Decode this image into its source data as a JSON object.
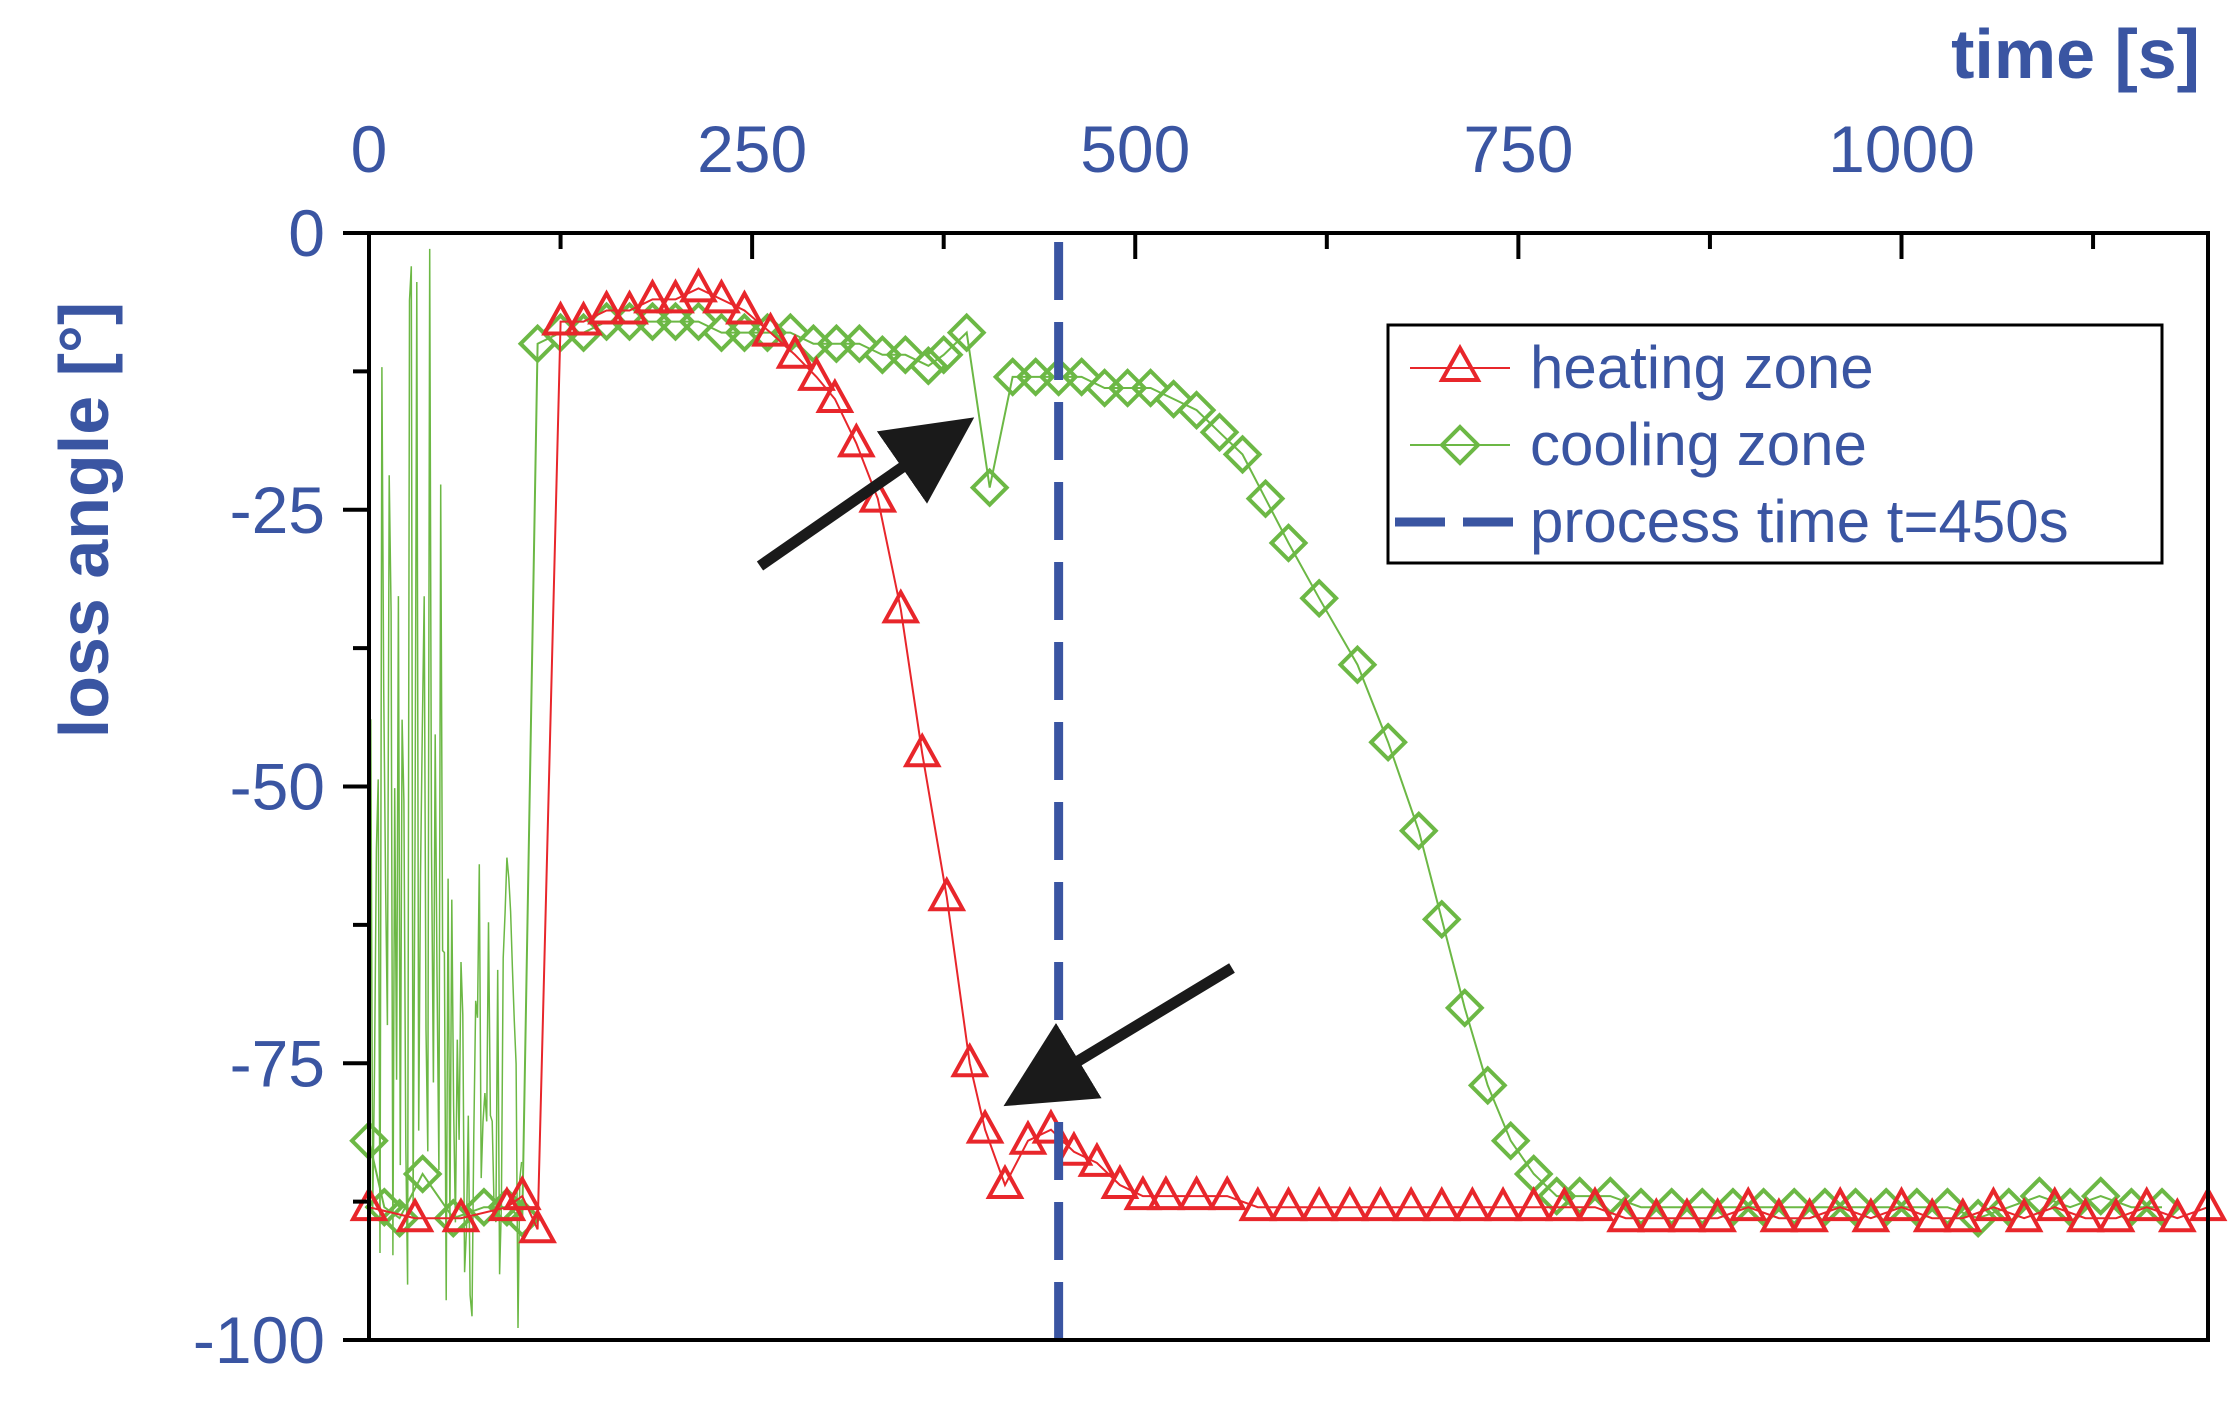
{
  "chart_data": {
    "type": "line",
    "xlabel": "time [s]",
    "ylabel": "loss angle [°]",
    "xlim": [
      0,
      1200
    ],
    "ylim": [
      -100,
      0
    ],
    "xticks": [
      "0",
      "250",
      "500",
      "750",
      "1000"
    ],
    "xtick_values": [
      0,
      250,
      500,
      750,
      1000
    ],
    "yticks": [
      "0",
      "-25",
      "-50",
      "-75",
      "-100"
    ],
    "ytick_values": [
      0,
      -25,
      -50,
      -75,
      -100
    ],
    "x_axis_position": "top",
    "grid": false,
    "legend_position": "top-right",
    "colors": {
      "heating": "#e8262b",
      "cooling": "#6cb845",
      "process": "#3a55a2",
      "axis_text": "#3a55a2",
      "arrow": "#1a1a1a"
    },
    "series": [
      {
        "name": "heating zone",
        "marker": "triangle",
        "x": [
          0,
          30,
          60,
          90,
          100,
          110,
          125,
          140,
          155,
          170,
          185,
          200,
          215,
          230,
          245,
          262,
          278,
          292,
          304,
          318,
          332,
          347,
          361,
          377,
          392,
          402,
          415,
          430,
          445,
          460,
          475,
          490,
          505,
          520,
          540,
          560,
          580,
          600,
          620,
          640,
          660,
          680,
          700,
          720,
          740,
          760,
          780,
          800,
          820,
          840,
          860,
          880,
          900,
          920,
          940,
          960,
          980,
          1000,
          1020,
          1040,
          1060,
          1080,
          1100,
          1120,
          1140,
          1160,
          1180,
          1200
        ],
        "y": [
          -88,
          -89,
          -89,
          -88,
          -87,
          -90,
          -8,
          -8,
          -7,
          -7,
          -6,
          -6,
          -5,
          -6,
          -7,
          -9,
          -11,
          -13,
          -15,
          -19,
          -24,
          -34,
          -47,
          -60,
          -75,
          -81,
          -86,
          -82,
          -81,
          -83,
          -84,
          -86,
          -87,
          -87,
          -87,
          -87,
          -88,
          -88,
          -88,
          -88,
          -88,
          -88,
          -88,
          -88,
          -88,
          -88,
          -88,
          -88,
          -89,
          -89,
          -89,
          -89,
          -88,
          -89,
          -89,
          -88,
          -89,
          -88,
          -89,
          -89,
          -88,
          -89,
          -88,
          -89,
          -89,
          -88,
          -89,
          -88
        ]
      },
      {
        "name": "cooling zone",
        "marker": "diamond",
        "x": [
          0,
          10,
          20,
          35,
          55,
          75,
          90,
          100,
          110,
          125,
          140,
          155,
          170,
          185,
          200,
          215,
          230,
          245,
          260,
          275,
          290,
          305,
          320,
          335,
          350,
          365,
          375,
          390,
          405,
          420,
          435,
          450,
          465,
          480,
          495,
          510,
          525,
          540,
          555,
          570,
          585,
          600,
          620,
          645,
          665,
          685,
          700,
          715,
          730,
          745,
          760,
          775,
          790,
          810,
          830,
          850,
          870,
          890,
          910,
          930,
          950,
          970,
          990,
          1010,
          1030,
          1050,
          1070,
          1090,
          1110,
          1130,
          1150,
          1170
        ],
        "y": [
          -82,
          -88,
          -89,
          -85,
          -89,
          -88,
          -88,
          -89,
          -10,
          -9,
          -9,
          -8,
          -8,
          -8,
          -8,
          -8,
          -9,
          -9,
          -9,
          -9,
          -10,
          -10,
          -10,
          -11,
          -11,
          -12,
          -11,
          -9,
          -23,
          -13,
          -13,
          -13,
          -13,
          -14,
          -14,
          -14,
          -15,
          -16,
          -18,
          -20,
          -24,
          -28,
          -33,
          -39,
          -46,
          -54,
          -62,
          -70,
          -77,
          -82,
          -85,
          -87,
          -87,
          -87,
          -88,
          -88,
          -88,
          -88,
          -88,
          -88,
          -88,
          -88,
          -88,
          -88,
          -88,
          -89,
          -88,
          -87,
          -88,
          -87,
          -88,
          -88
        ]
      },
      {
        "name": "process time t=450s",
        "style": "dashed-vertical",
        "x": [
          450,
          450
        ],
        "y": [
          -100,
          0
        ]
      }
    ],
    "annotations": [
      {
        "type": "arrow",
        "from": [
          255,
          -60
        ],
        "to": [
          395,
          -79
        ]
      },
      {
        "type": "arrow",
        "from": [
          255,
          -75
        ],
        "to": [
          395,
          -62
        ]
      }
    ]
  }
}
